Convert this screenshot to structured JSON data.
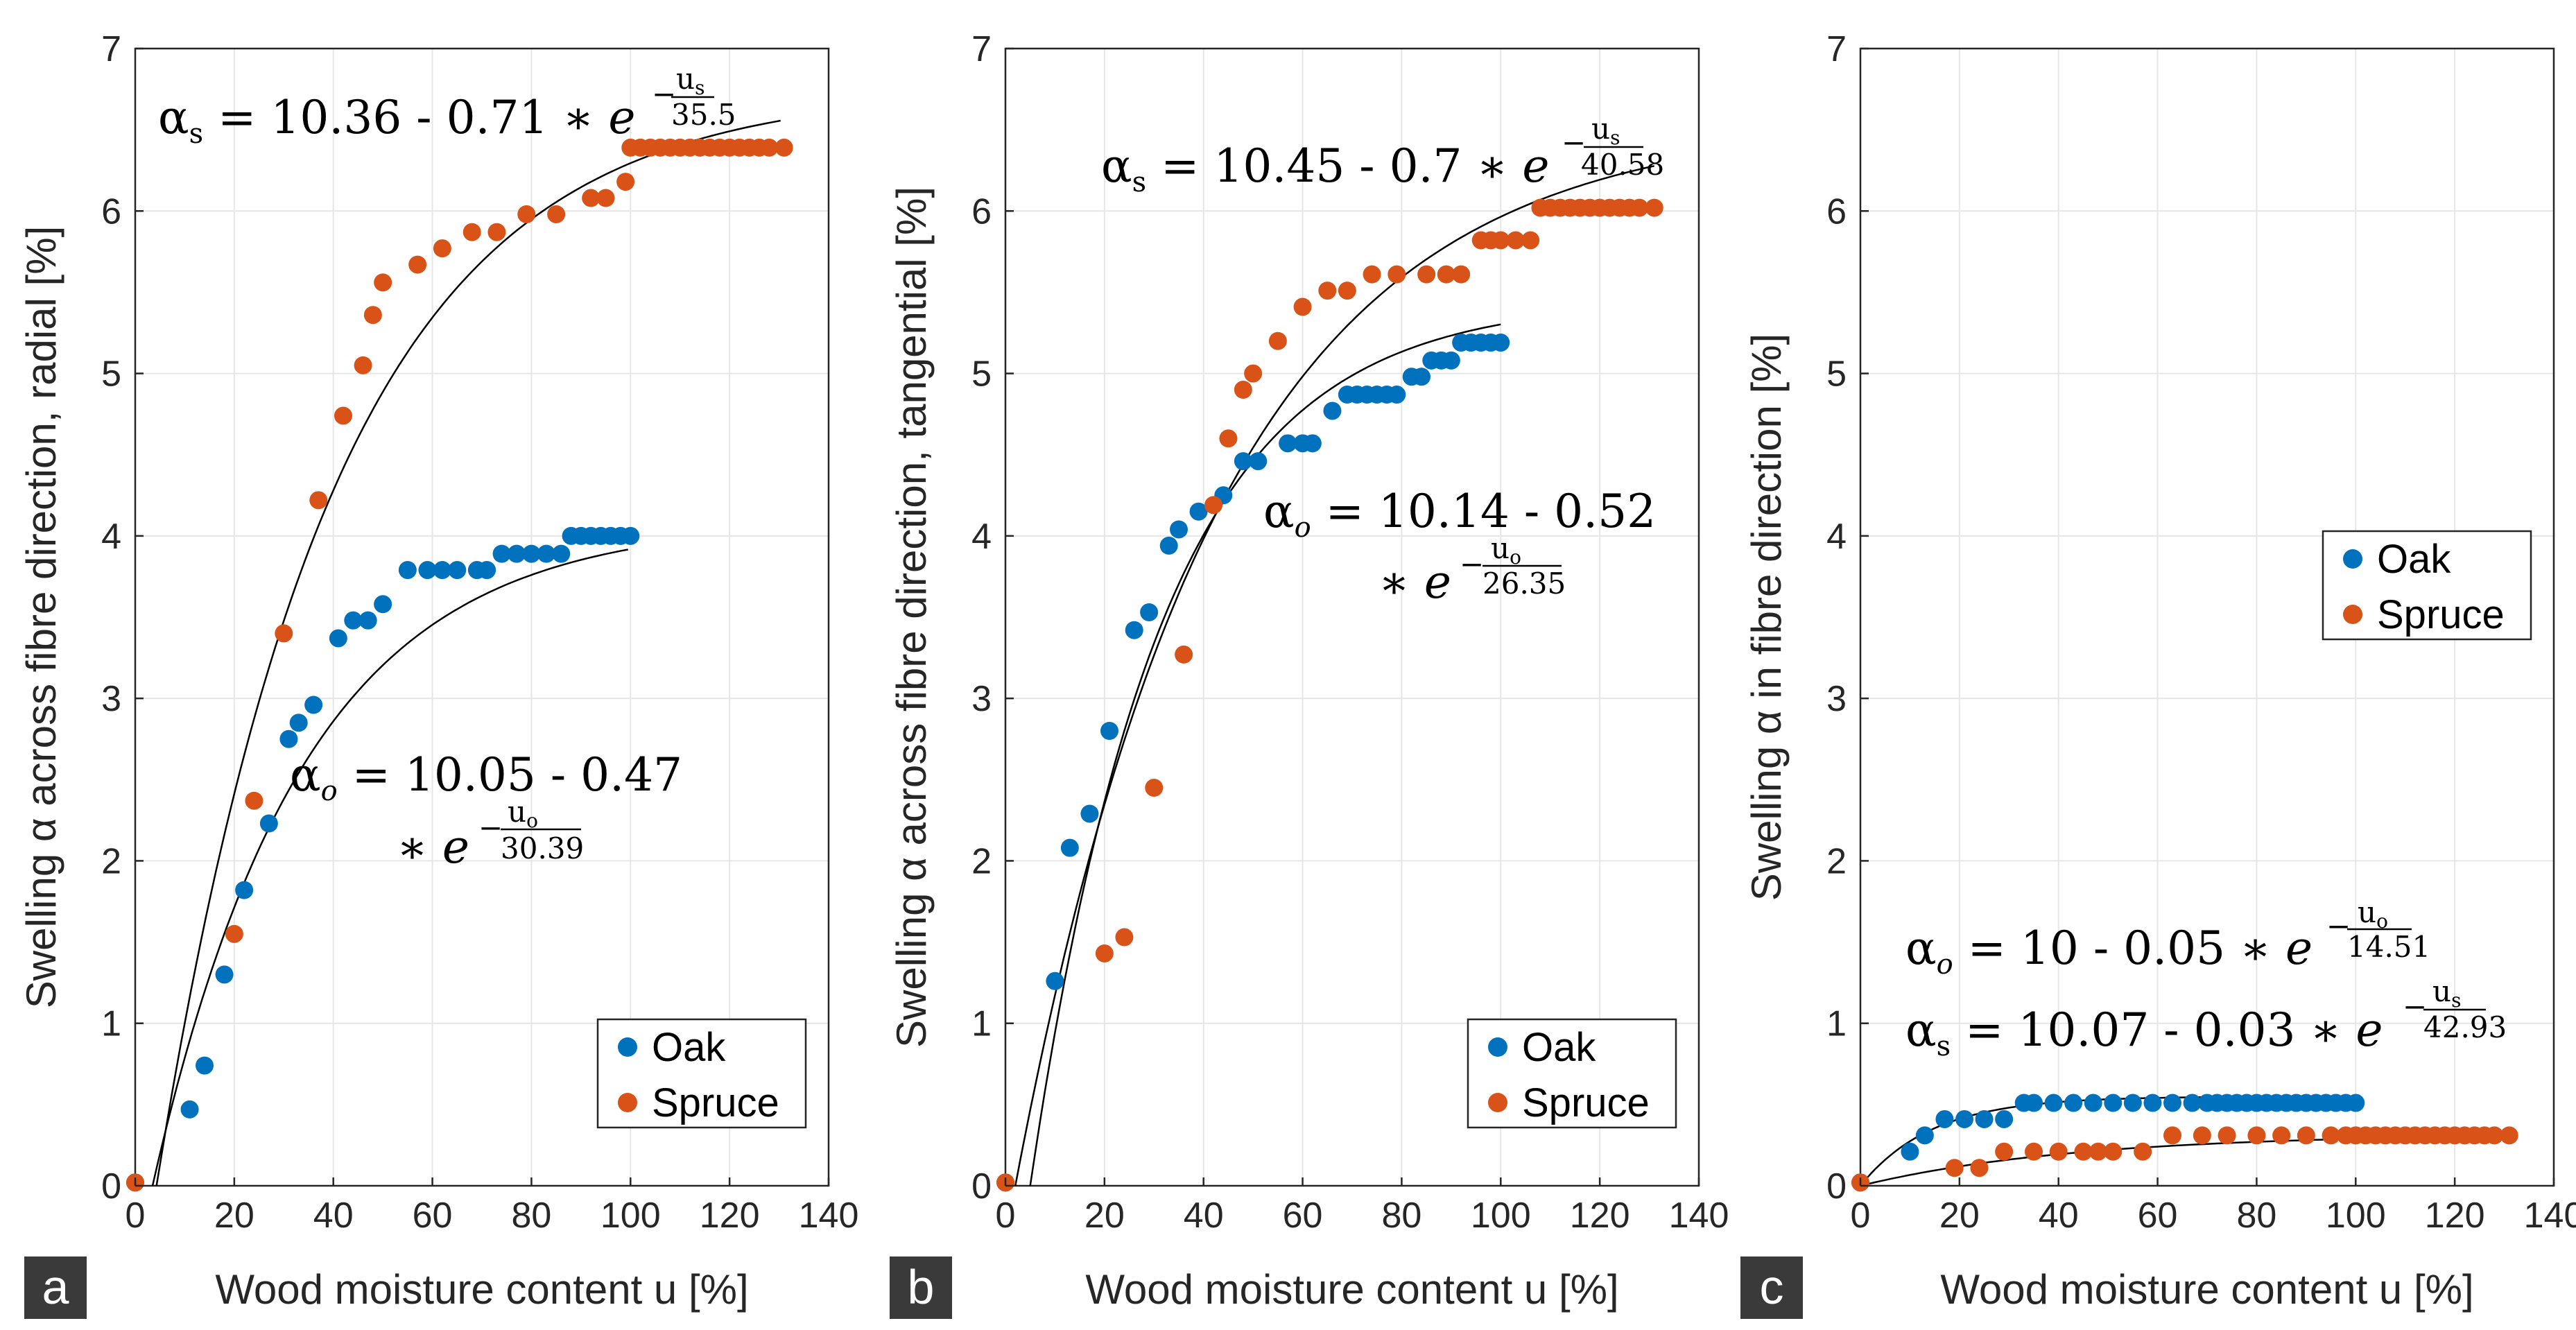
{
  "chart_data": [
    {
      "type": "scatter",
      "panel_label": "a",
      "xlabel": "Wood moisture content u [%]",
      "ylabel": "Swelling α across fibre direction, radial [%]",
      "xlim": [
        0,
        140
      ],
      "ylim": [
        0,
        7
      ],
      "xticks": [
        "0",
        "20",
        "40",
        "60",
        "80",
        "100",
        "120",
        "140"
      ],
      "yticks": [
        "0",
        "1",
        "2",
        "3",
        "4",
        "5",
        "6",
        "7"
      ],
      "grid": true,
      "legend": {
        "position": "bottom-right",
        "entries": [
          "Oak",
          "Spruce"
        ]
      },
      "series": [
        {
          "name": "Oak",
          "color": "#0072BD",
          "x": [
            0,
            11,
            14,
            18,
            22,
            27,
            31,
            33,
            36,
            41,
            44,
            47,
            50,
            55,
            59,
            62,
            65,
            69,
            71,
            74,
            77,
            80,
            83,
            86,
            88,
            90,
            92,
            94,
            96,
            98,
            100
          ],
          "y": [
            0.02,
            0.47,
            0.74,
            1.3,
            1.82,
            2.23,
            2.75,
            2.85,
            2.96,
            3.37,
            3.48,
            3.48,
            3.58,
            3.79,
            3.79,
            3.79,
            3.79,
            3.79,
            3.79,
            3.89,
            3.89,
            3.89,
            3.89,
            3.89,
            4.0,
            4.0,
            4.0,
            4.0,
            4.0,
            4.0,
            4.0
          ]
        },
        {
          "name": "Spruce",
          "color": "#D95319",
          "x": [
            0,
            20,
            24,
            30,
            37,
            42,
            46,
            48,
            50,
            57,
            62,
            68,
            73,
            79,
            85,
            92,
            95,
            99,
            100,
            102,
            104,
            106,
            108,
            110,
            112,
            114,
            116,
            118,
            120,
            122,
            124,
            126,
            128,
            131
          ],
          "y": [
            0.02,
            1.55,
            2.37,
            3.4,
            4.22,
            4.74,
            5.05,
            5.36,
            5.56,
            5.67,
            5.77,
            5.87,
            5.87,
            5.98,
            5.98,
            6.08,
            6.08,
            6.18,
            6.39,
            6.39,
            6.39,
            6.39,
            6.39,
            6.39,
            6.39,
            6.39,
            6.39,
            6.39,
            6.39,
            6.39,
            6.39,
            6.39,
            6.39,
            6.39
          ]
        }
      ],
      "annotations": [
        {
          "text": "αs = 10.36 - 0.71 ∗ e^(−us/35.5)"
        },
        {
          "text": "αo = 10.05 - 0.47 ∗ e^(−uo/30.39)"
        }
      ]
    },
    {
      "type": "scatter",
      "panel_label": "b",
      "xlabel": "Wood moisture content u [%]",
      "ylabel": "Swelling α across fibre direction, tangential [%]",
      "xlim": [
        0,
        140
      ],
      "ylim": [
        0,
        7
      ],
      "xticks": [
        "0",
        "20",
        "40",
        "60",
        "80",
        "100",
        "120",
        "140"
      ],
      "yticks": [
        "0",
        "1",
        "2",
        "3",
        "4",
        "5",
        "6",
        "7"
      ],
      "grid": true,
      "legend": {
        "position": "bottom-right",
        "entries": [
          "Oak",
          "Spruce"
        ]
      },
      "series": [
        {
          "name": "Oak",
          "color": "#0072BD",
          "x": [
            0,
            10,
            13,
            17,
            21,
            26,
            29,
            33,
            35,
            39,
            44,
            48,
            51,
            57,
            60,
            62,
            66,
            69,
            71,
            73,
            75,
            77,
            79,
            82,
            84,
            86,
            88,
            90,
            92,
            94,
            96,
            98,
            100
          ],
          "y": [
            0.02,
            1.26,
            2.08,
            2.29,
            2.8,
            3.42,
            3.53,
            3.94,
            4.04,
            4.15,
            4.25,
            4.46,
            4.46,
            4.57,
            4.57,
            4.57,
            4.77,
            4.87,
            4.87,
            4.87,
            4.87,
            4.87,
            4.87,
            4.98,
            4.98,
            5.08,
            5.08,
            5.08,
            5.19,
            5.19,
            5.19,
            5.19,
            5.19
          ]
        },
        {
          "name": "Spruce",
          "color": "#D95319",
          "x": [
            0,
            20,
            24,
            30,
            36,
            42,
            45,
            48,
            50,
            55,
            60,
            65,
            69,
            74,
            79,
            85,
            89,
            92,
            96,
            98,
            100,
            103,
            106,
            108,
            110,
            112,
            114,
            116,
            118,
            120,
            122,
            124,
            126,
            128,
            131
          ],
          "y": [
            0.02,
            1.43,
            1.53,
            2.45,
            3.27,
            4.19,
            4.6,
            4.9,
            5.0,
            5.2,
            5.41,
            5.51,
            5.51,
            5.61,
            5.61,
            5.61,
            5.61,
            5.61,
            5.82,
            5.82,
            5.82,
            5.82,
            5.82,
            6.02,
            6.02,
            6.02,
            6.02,
            6.02,
            6.02,
            6.02,
            6.02,
            6.02,
            6.02,
            6.02,
            6.02
          ]
        }
      ],
      "annotations": [
        {
          "text": "αs = 10.45 - 0.7 ∗ e^(−us/40.58)"
        },
        {
          "text": "αo = 10.14 - 0.52 ∗ e^(−uo/26.35)"
        }
      ]
    },
    {
      "type": "scatter",
      "panel_label": "c",
      "xlabel": "Wood moisture content u [%]",
      "ylabel": "Swelling α in fibre direction [%]",
      "xlim": [
        0,
        140
      ],
      "ylim": [
        0,
        7
      ],
      "xticks": [
        "0",
        "20",
        "40",
        "60",
        "80",
        "100",
        "120",
        "140"
      ],
      "yticks": [
        "0",
        "1",
        "2",
        "3",
        "4",
        "5",
        "6",
        "7"
      ],
      "grid": true,
      "legend": {
        "position": "center-right",
        "entries": [
          "Oak",
          "Spruce"
        ]
      },
      "series": [
        {
          "name": "Oak",
          "color": "#0072BD",
          "x": [
            0,
            10,
            13,
            17,
            21,
            25,
            29,
            33,
            35,
            39,
            43,
            47,
            51,
            55,
            59,
            63,
            67,
            70,
            72,
            74,
            76,
            78,
            80,
            82,
            84,
            86,
            88,
            90,
            92,
            94,
            96,
            98,
            100
          ],
          "y": [
            0.02,
            0.21,
            0.31,
            0.41,
            0.41,
            0.41,
            0.41,
            0.51,
            0.51,
            0.51,
            0.51,
            0.51,
            0.51,
            0.51,
            0.51,
            0.51,
            0.51,
            0.51,
            0.51,
            0.51,
            0.51,
            0.51,
            0.51,
            0.51,
            0.51,
            0.51,
            0.51,
            0.51,
            0.51,
            0.51,
            0.51,
            0.51,
            0.51
          ]
        },
        {
          "name": "Spruce",
          "color": "#D95319",
          "x": [
            0,
            19,
            24,
            29,
            35,
            40,
            45,
            48,
            51,
            57,
            63,
            69,
            74,
            80,
            85,
            90,
            95,
            98,
            100,
            102,
            104,
            106,
            108,
            110,
            112,
            114,
            116,
            118,
            120,
            122,
            124,
            126,
            128,
            131
          ],
          "y": [
            0.02,
            0.11,
            0.11,
            0.21,
            0.21,
            0.21,
            0.21,
            0.21,
            0.21,
            0.21,
            0.31,
            0.31,
            0.31,
            0.31,
            0.31,
            0.31,
            0.31,
            0.31,
            0.31,
            0.31,
            0.31,
            0.31,
            0.31,
            0.31,
            0.31,
            0.31,
            0.31,
            0.31,
            0.31,
            0.31,
            0.31,
            0.31,
            0.31,
            0.31
          ]
        }
      ],
      "annotations": [
        {
          "text": "αo = 10 - 0.05 ∗ e^(−uo/14.51)"
        },
        {
          "text": "αs = 10.07 - 0.03 ∗ e^(−us/42.93)"
        }
      ]
    }
  ],
  "fits": [
    {
      "oak": {
        "A": 4.09,
        "k": 30.39,
        "u0": 3.5
      },
      "spruce": {
        "A": 6.75,
        "k": 35.5,
        "u0": 4.3
      }
    },
    {
      "oak": {
        "A": 5.45,
        "k": 26.35,
        "u0": 5.0
      },
      "spruce": {
        "A": 6.55,
        "k": 40.58,
        "u0": 2.0
      }
    },
    {
      "oak": {
        "A": 0.55,
        "k": 14.51,
        "u0": 0.0
      },
      "spruce": {
        "A": 0.32,
        "k": 42.93,
        "u0": 0.0
      }
    }
  ],
  "equations": {
    "a_spruce": {
      "alpha": "α",
      "sub": "s",
      "rest": " = 10.36 - 0.71 ∗ ",
      "e": "e",
      "num": "u",
      "numsub": "s",
      "den": "35.5"
    },
    "a_oak": {
      "alpha": "α",
      "sub": "o",
      "rest": " = 10.05 - 0.47",
      "cont": "∗ ",
      "e": "e",
      "num": "u",
      "numsub": "o",
      "den": "30.39"
    },
    "b_spruce": {
      "alpha": "α",
      "sub": "s",
      "rest": " = 10.45 - 0.7 ∗ ",
      "e": "e",
      "num": "u",
      "numsub": "s",
      "den": "40.58"
    },
    "b_oak": {
      "alpha": "α",
      "sub": "o",
      "rest": " = 10.14 - 0.52",
      "cont": "∗ ",
      "e": "e",
      "num": "u",
      "numsub": "o",
      "den": "26.35"
    },
    "c_oak": {
      "alpha": "α",
      "sub": "o",
      "rest": " = 10 - 0.05 ∗ ",
      "e": "e",
      "num": "u",
      "numsub": "o",
      "den": "14.51"
    },
    "c_spruce": {
      "alpha": "α",
      "sub": "s",
      "rest": " = 10.07 - 0.03 ∗ ",
      "e": "e",
      "num": "u",
      "numsub": "s",
      "den": "42.93"
    }
  },
  "colors": {
    "oak": "#0072BD",
    "spruce": "#D95319",
    "panel_badge": "#3a3a3a"
  }
}
